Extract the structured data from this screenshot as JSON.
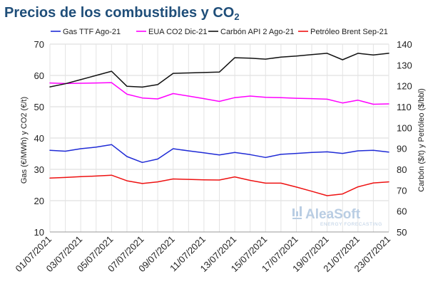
{
  "chart_data": {
    "type": "line",
    "title": "Precios de los combustibles y CO",
    "title_subscript": "2",
    "ylabel": "Gas (€/MWh) y CO2 (€/t)",
    "ylabel2": "Carbón ($/t) y Petróleo ($/bbl)",
    "ylim": [
      10,
      70
    ],
    "ylim2": [
      50,
      140
    ],
    "yticks": [
      "10",
      "20",
      "30",
      "40",
      "50",
      "60",
      "70"
    ],
    "yticks2": [
      "50",
      "60",
      "70",
      "80",
      "90",
      "100",
      "110",
      "120",
      "130",
      "140"
    ],
    "grid": true,
    "legend_position": "top",
    "x": [
      "01/07/2021",
      "02/07/2021",
      "03/07/2021",
      "04/07/2021",
      "05/07/2021",
      "06/07/2021",
      "07/07/2021",
      "08/07/2021",
      "09/07/2021",
      "10/07/2021",
      "11/07/2021",
      "12/07/2021",
      "13/07/2021",
      "14/07/2021",
      "15/07/2021",
      "16/07/2021",
      "17/07/2021",
      "18/07/2021",
      "19/07/2021",
      "20/07/2021",
      "21/07/2021",
      "22/07/2021",
      "23/07/2021"
    ],
    "x_tick_labels": [
      "01/07/2021",
      "03/07/2021",
      "05/07/2021",
      "07/07/2021",
      "09/07/2021",
      "11/07/2021",
      "13/07/2021",
      "15/07/2021",
      "17/07/2021",
      "19/07/2021",
      "21/07/2021",
      "23/07/2021"
    ],
    "series": [
      {
        "name": "Gas TTF Ago-21",
        "axis": "left",
        "color": "#1f2bd6",
        "values": [
          36.1,
          35.8,
          36.6,
          37.1,
          37.9,
          34.1,
          32.2,
          33.3,
          36.6,
          35.9,
          35.3,
          34.6,
          35.4,
          34.7,
          33.8,
          34.8,
          35.1,
          35.4,
          35.6,
          35.1,
          35.9,
          36.1,
          35.5
        ]
      },
      {
        "name": "EUA CO2 Dic-21",
        "axis": "left",
        "color": "#ff00ff",
        "values": [
          57.6,
          57.4,
          57.5,
          57.6,
          57.7,
          54.0,
          52.8,
          52.5,
          54.2,
          53.4,
          52.6,
          51.7,
          52.9,
          53.4,
          53.0,
          52.9,
          52.7,
          52.6,
          52.4,
          51.2,
          52.1,
          50.8,
          50.9
        ]
      },
      {
        "name": "Carbón API 2 Ago-21",
        "axis": "right",
        "color": "#111111",
        "values": [
          119.5,
          121.0,
          123.0,
          125.0,
          127.0,
          119.8,
          119.4,
          120.6,
          126.0,
          126.2,
          126.4,
          126.6,
          133.5,
          133.3,
          132.8,
          133.8,
          134.3,
          135.0,
          135.6,
          132.5,
          135.6,
          134.8,
          135.6
        ]
      },
      {
        "name": "Petróleo Brent Sep-21",
        "axis": "right",
        "color": "#ee1111",
        "values": [
          75.8,
          76.1,
          76.5,
          76.8,
          77.2,
          74.5,
          73.2,
          74.0,
          75.4,
          75.2,
          75.0,
          74.9,
          76.4,
          74.7,
          73.4,
          73.4,
          71.5,
          69.5,
          67.4,
          68.2,
          71.6,
          73.5,
          74.0
        ]
      }
    ]
  },
  "watermark": {
    "brand": "AleaSoft",
    "tagline": "ENERGY FORECASTING",
    "color": "#b9cde3"
  }
}
